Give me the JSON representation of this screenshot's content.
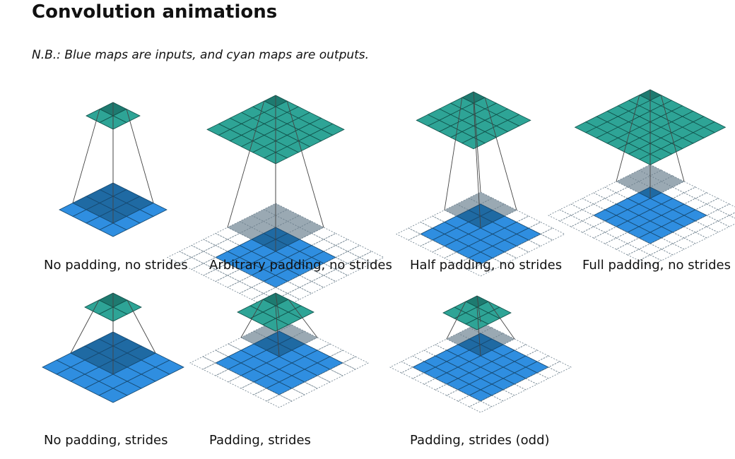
{
  "page": {
    "title": "Convolution animations",
    "note": "N.B.: Blue maps are inputs, and cyan maps are outputs."
  },
  "colors": {
    "input": "#2f8ee0",
    "input_dark": "#1f6aa3",
    "output": "#2ea496",
    "output_dark": "#1e7a70",
    "kernel_grey": "#9aa9b3",
    "line": "#444444",
    "pad_dash": "#6c7f8c"
  },
  "animations": [
    {
      "caption": "No padding, no strides",
      "input": 4,
      "pad": 0,
      "output": 2,
      "kernel": 3
    },
    {
      "caption": "Arbitrary padding, no strides",
      "input": 5,
      "pad": 2,
      "output": 6,
      "kernel": 4
    },
    {
      "caption": "Half padding, no strides",
      "input": 5,
      "pad": 1,
      "output": 5,
      "kernel": 3
    },
    {
      "caption": "Full padding, no strides",
      "input": 5,
      "pad": 2,
      "output": 7,
      "kernel": 3
    },
    {
      "caption": "No padding, strides",
      "input": 5,
      "pad": 0,
      "output": 2,
      "kernel": 3
    },
    {
      "caption": "Padding, strides",
      "input": 5,
      "pad": 1,
      "output": 3,
      "kernel": 3
    },
    {
      "caption": "Padding, strides (odd)",
      "input": 6,
      "pad": 1,
      "output": 3,
      "kernel": 3
    }
  ]
}
